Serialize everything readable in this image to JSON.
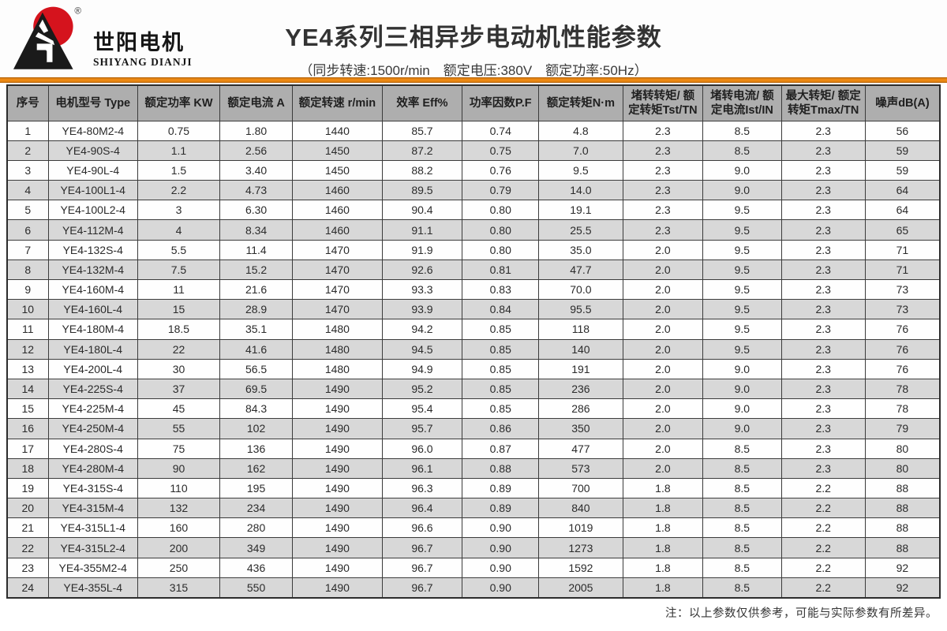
{
  "logo": {
    "brand_cn": "世阳电机",
    "brand_en": "SHIYANG DIANJI",
    "registered_mark": "®",
    "colors": {
      "sun_red": "#d5131d",
      "mountain_black": "#1a1a1a"
    }
  },
  "header": {
    "title": "YE4系列三相异步电动机性能参数",
    "subtitle": "（同步转速:1500r/min　额定电压:380V　额定功率:50Hz）"
  },
  "accent_color": "#ec8913",
  "table": {
    "columns": [
      "序号",
      "电机型号 Type",
      "额定功率 KW",
      "额定电流 A",
      "额定转速 r/min",
      "效率 Eff%",
      "功率因数P.F",
      "额定转矩N·m",
      "堵转转矩/ 额定转矩Tst/TN",
      "堵转电流/ 额定电流Ist/IN",
      "最大转矩/ 额定转矩Tmax/TN",
      "噪声dB(A)"
    ],
    "header_bg": "#aeaeae",
    "row_alt_bg": "#d8d8d8",
    "rows": [
      [
        "1",
        "YE4-80M2-4",
        "0.75",
        "1.80",
        "1440",
        "85.7",
        "0.74",
        "4.8",
        "2.3",
        "8.5",
        "2.3",
        "56"
      ],
      [
        "2",
        "YE4-90S-4",
        "1.1",
        "2.56",
        "1450",
        "87.2",
        "0.75",
        "7.0",
        "2.3",
        "8.5",
        "2.3",
        "59"
      ],
      [
        "3",
        "YE4-90L-4",
        "1.5",
        "3.40",
        "1450",
        "88.2",
        "0.76",
        "9.5",
        "2.3",
        "9.0",
        "2.3",
        "59"
      ],
      [
        "4",
        "YE4-100L1-4",
        "2.2",
        "4.73",
        "1460",
        "89.5",
        "0.79",
        "14.0",
        "2.3",
        "9.0",
        "2.3",
        "64"
      ],
      [
        "5",
        "YE4-100L2-4",
        "3",
        "6.30",
        "1460",
        "90.4",
        "0.80",
        "19.1",
        "2.3",
        "9.5",
        "2.3",
        "64"
      ],
      [
        "6",
        "YE4-112M-4",
        "4",
        "8.34",
        "1460",
        "91.1",
        "0.80",
        "25.5",
        "2.3",
        "9.5",
        "2.3",
        "65"
      ],
      [
        "7",
        "YE4-132S-4",
        "5.5",
        "11.4",
        "1470",
        "91.9",
        "0.80",
        "35.0",
        "2.0",
        "9.5",
        "2.3",
        "71"
      ],
      [
        "8",
        "YE4-132M-4",
        "7.5",
        "15.2",
        "1470",
        "92.6",
        "0.81",
        "47.7",
        "2.0",
        "9.5",
        "2.3",
        "71"
      ],
      [
        "9",
        "YE4-160M-4",
        "11",
        "21.6",
        "1470",
        "93.3",
        "0.83",
        "70.0",
        "2.0",
        "9.5",
        "2.3",
        "73"
      ],
      [
        "10",
        "YE4-160L-4",
        "15",
        "28.9",
        "1470",
        "93.9",
        "0.84",
        "95.5",
        "2.0",
        "9.5",
        "2.3",
        "73"
      ],
      [
        "11",
        "YE4-180M-4",
        "18.5",
        "35.1",
        "1480",
        "94.2",
        "0.85",
        "118",
        "2.0",
        "9.5",
        "2.3",
        "76"
      ],
      [
        "12",
        "YE4-180L-4",
        "22",
        "41.6",
        "1480",
        "94.5",
        "0.85",
        "140",
        "2.0",
        "9.5",
        "2.3",
        "76"
      ],
      [
        "13",
        "YE4-200L-4",
        "30",
        "56.5",
        "1480",
        "94.9",
        "0.85",
        "191",
        "2.0",
        "9.0",
        "2.3",
        "76"
      ],
      [
        "14",
        "YE4-225S-4",
        "37",
        "69.5",
        "1490",
        "95.2",
        "0.85",
        "236",
        "2.0",
        "9.0",
        "2.3",
        "78"
      ],
      [
        "15",
        "YE4-225M-4",
        "45",
        "84.3",
        "1490",
        "95.4",
        "0.85",
        "286",
        "2.0",
        "9.0",
        "2.3",
        "78"
      ],
      [
        "16",
        "YE4-250M-4",
        "55",
        "102",
        "1490",
        "95.7",
        "0.86",
        "350",
        "2.0",
        "9.0",
        "2.3",
        "79"
      ],
      [
        "17",
        "YE4-280S-4",
        "75",
        "136",
        "1490",
        "96.0",
        "0.87",
        "477",
        "2.0",
        "8.5",
        "2.3",
        "80"
      ],
      [
        "18",
        "YE4-280M-4",
        "90",
        "162",
        "1490",
        "96.1",
        "0.88",
        "573",
        "2.0",
        "8.5",
        "2.3",
        "80"
      ],
      [
        "19",
        "YE4-315S-4",
        "110",
        "195",
        "1490",
        "96.3",
        "0.89",
        "700",
        "1.8",
        "8.5",
        "2.2",
        "88"
      ],
      [
        "20",
        "YE4-315M-4",
        "132",
        "234",
        "1490",
        "96.4",
        "0.89",
        "840",
        "1.8",
        "8.5",
        "2.2",
        "88"
      ],
      [
        "21",
        "YE4-315L1-4",
        "160",
        "280",
        "1490",
        "96.6",
        "0.90",
        "1019",
        "1.8",
        "8.5",
        "2.2",
        "88"
      ],
      [
        "22",
        "YE4-315L2-4",
        "200",
        "349",
        "1490",
        "96.7",
        "0.90",
        "1273",
        "1.8",
        "8.5",
        "2.2",
        "88"
      ],
      [
        "23",
        "YE4-355M2-4",
        "250",
        "436",
        "1490",
        "96.7",
        "0.90",
        "1592",
        "1.8",
        "8.5",
        "2.2",
        "92"
      ],
      [
        "24",
        "YE4-355L-4",
        "315",
        "550",
        "1490",
        "96.7",
        "0.90",
        "2005",
        "1.8",
        "8.5",
        "2.2",
        "92"
      ]
    ]
  },
  "footnote": "注：以上参数仅供参考，可能与实际参数有所差异。"
}
